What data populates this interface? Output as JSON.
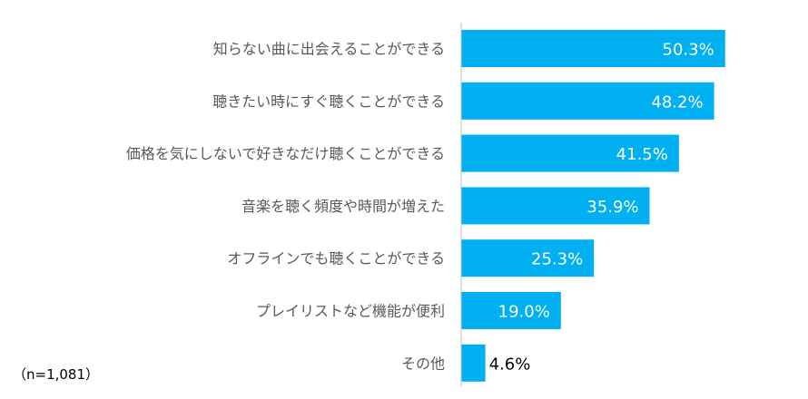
{
  "chart_data": {
    "type": "bar",
    "orientation": "horizontal",
    "categories": [
      "知らない曲に出会えることができる",
      "聴きたい時にすぐ聴くことができる",
      "価格を気にしないで好きなだけ聴くことができる",
      "音楽を聴く頻度や時間が増えた",
      "オフラインでも聴くことができる",
      "プレイリストなど機能が便利",
      "その他"
    ],
    "values": [
      50.3,
      48.2,
      41.5,
      35.9,
      25.3,
      19.0,
      4.6
    ],
    "value_labels": [
      "50.3%",
      "48.2%",
      "41.5%",
      "35.9%",
      "25.3%",
      "19.0%",
      "4.6%"
    ],
    "xlim": [
      0,
      100
    ],
    "bar_color": "#00B0F0",
    "label_color_inside": "#ffffff",
    "label_color_outside": "#000000",
    "axis_color": "#bfbfbf",
    "category_label_color": "#595959",
    "grid": false,
    "note": "（n=1,081）"
  }
}
